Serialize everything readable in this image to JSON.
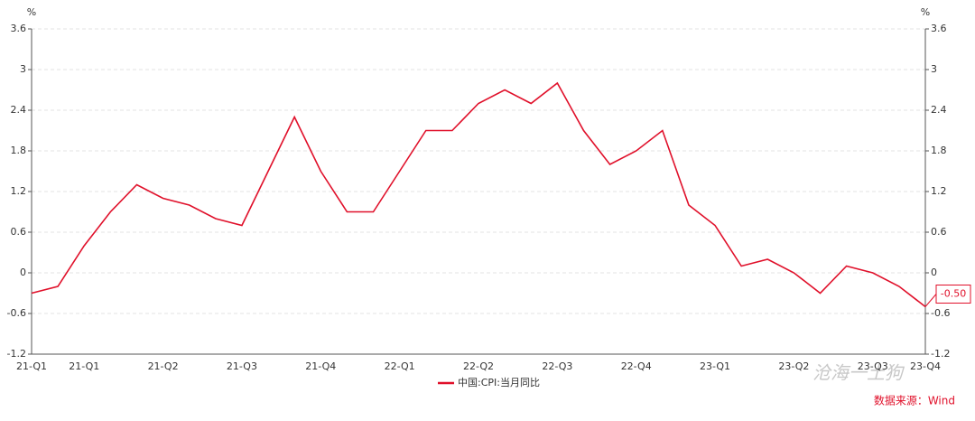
{
  "chart_data": {
    "type": "line",
    "y_unit": "%",
    "y2_unit": "%",
    "categories": [
      "21-Q1",
      null,
      "21-Q1",
      null,
      null,
      "21-Q2",
      null,
      null,
      "21-Q3",
      null,
      null,
      "21-Q4",
      null,
      null,
      "22-Q1",
      null,
      null,
      "22-Q2",
      null,
      null,
      "22-Q3",
      null,
      null,
      "22-Q4",
      null,
      null,
      "23-Q1",
      null,
      null,
      "23-Q2",
      null,
      null,
      "23-Q3",
      null,
      "23-Q4"
    ],
    "series": [
      {
        "name": "中国:CPI:当月同比",
        "color": "#e0102a",
        "values": [
          -0.3,
          -0.2,
          0.4,
          0.9,
          1.3,
          1.1,
          1.0,
          0.8,
          0.7,
          1.5,
          2.3,
          1.5,
          0.9,
          0.9,
          1.5,
          2.1,
          2.1,
          2.5,
          2.7,
          2.5,
          2.8,
          2.1,
          1.6,
          1.8,
          2.1,
          1.0,
          0.7,
          0.1,
          0.2,
          0.0,
          -0.3,
          0.1,
          0.0,
          -0.2,
          -0.5
        ],
        "value_labels": [
          null,
          null,
          null,
          null,
          null,
          null,
          null,
          null,
          null,
          null,
          null,
          null,
          null,
          null,
          null,
          null,
          null,
          null,
          null,
          null,
          null,
          null,
          null,
          null,
          null,
          null,
          null,
          null,
          null,
          null,
          null,
          null,
          null,
          null,
          "-0.50"
        ]
      }
    ],
    "ylim": [
      -1.2,
      3.6
    ],
    "yticks": [
      -1.2,
      -0.6,
      0,
      0.6,
      1.2,
      1.8,
      2.4,
      3,
      3.6
    ],
    "y2lim": [
      -1.2,
      3.6
    ],
    "y2ticks": [
      -1.2,
      -0.6,
      0,
      0.6,
      1.2,
      1.8,
      2.4,
      3,
      3.6
    ],
    "grid": true,
    "legend": "bottom",
    "source": "数据来源：Wind",
    "watermark": "沧海一土狗"
  }
}
